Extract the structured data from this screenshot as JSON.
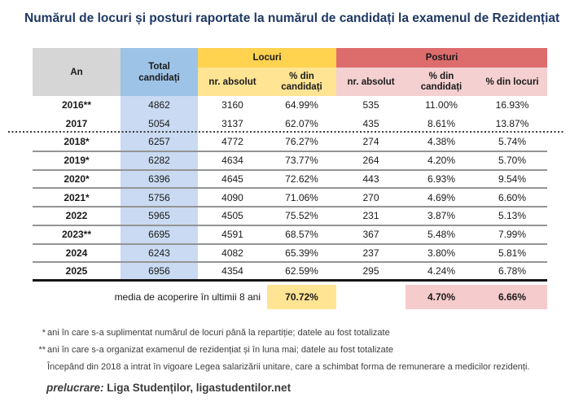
{
  "title": "Numărul de locuri și posturi raportate la numărul de candidați la examenul de Rezidențiat",
  "colors": {
    "title_text": "#1F3864",
    "header_an_bg": "#D6D6D6",
    "header_blue_bg": "#9DC3E6",
    "header_yellow_bg": "#FFD250",
    "header_yellow_light_bg": "#FFE494",
    "header_red_bg": "#DD6C6C",
    "header_pink_bg": "#F4D0D0",
    "data_blue_bg": "#C9DAF2",
    "summary_yellow_bg": "#FFE494",
    "summary_pink_bg": "#F5CBCB"
  },
  "table": {
    "headers": {
      "an": "An",
      "total": "Total candidați",
      "locuri": "Locuri",
      "posturi": "Posturi",
      "sub_locuri_abs": "nr. absolut",
      "sub_locuri_pct": "% din candidați",
      "sub_posturi_abs": "nr. absolut",
      "sub_posturi_pct": "% din candidați",
      "sub_posturi_loc": "% din locuri"
    },
    "rows": [
      {
        "an": "2016**",
        "total": "4862",
        "l_abs": "3160",
        "l_pct": "64.99%",
        "p_abs": "535",
        "p_pct": "11.00%",
        "p_loc": "16.93%"
      },
      {
        "an": "2017",
        "total": "5054",
        "l_abs": "3137",
        "l_pct": "62.07%",
        "p_abs": "435",
        "p_pct": "8.61%",
        "p_loc": "13.87%"
      },
      {
        "an": "2018*",
        "total": "6257",
        "l_abs": "4772",
        "l_pct": "76.27%",
        "p_abs": "274",
        "p_pct": "4.38%",
        "p_loc": "5.74%"
      },
      {
        "an": "2019*",
        "total": "6282",
        "l_abs": "4634",
        "l_pct": "73.77%",
        "p_abs": "264",
        "p_pct": "4.20%",
        "p_loc": "5.70%"
      },
      {
        "an": "2020*",
        "total": "6396",
        "l_abs": "4645",
        "l_pct": "72.62%",
        "p_abs": "443",
        "p_pct": "6.93%",
        "p_loc": "9.54%"
      },
      {
        "an": "2021*",
        "total": "5756",
        "l_abs": "4090",
        "l_pct": "71.06%",
        "p_abs": "270",
        "p_pct": "4.69%",
        "p_loc": "6.60%"
      },
      {
        "an": "2022",
        "total": "5965",
        "l_abs": "4505",
        "l_pct": "75.52%",
        "p_abs": "231",
        "p_pct": "3.87%",
        "p_loc": "5.13%"
      },
      {
        "an": "2023**",
        "total": "6695",
        "l_abs": "4591",
        "l_pct": "68.57%",
        "p_abs": "367",
        "p_pct": "5.48%",
        "p_loc": "7.99%"
      },
      {
        "an": "2024",
        "total": "6243",
        "l_abs": "4082",
        "l_pct": "65.39%",
        "p_abs": "237",
        "p_pct": "3.80%",
        "p_loc": "5.81%"
      },
      {
        "an": "2025",
        "total": "6956",
        "l_abs": "4354",
        "l_pct": "62.59%",
        "p_abs": "295",
        "p_pct": "4.24%",
        "p_loc": "6.78%"
      }
    ],
    "summary": {
      "label": "media de acoperire în ultimii 8 ani",
      "l_pct": "70.72%",
      "p_pct": "4.70%",
      "p_loc": "6.66%"
    }
  },
  "footnotes": [
    {
      "marker": "*",
      "text": "ani în care s-a suplimentat numărul de locuri până la repartiție; datele au fost totalizate"
    },
    {
      "marker": "**",
      "text": "ani în care s-a organizat examenul de rezidențiat și în luna mai; datele au fost totalizate"
    },
    {
      "marker": "",
      "text": "Începând din 2018 a intrat în vigoare Legea salarizării unitare, care a schimbat forma de remunerare a medicilor rezidenți."
    }
  ],
  "credit": {
    "label": "prelucrare:",
    "text": " Liga Studenților, ligastudentilor.net"
  }
}
